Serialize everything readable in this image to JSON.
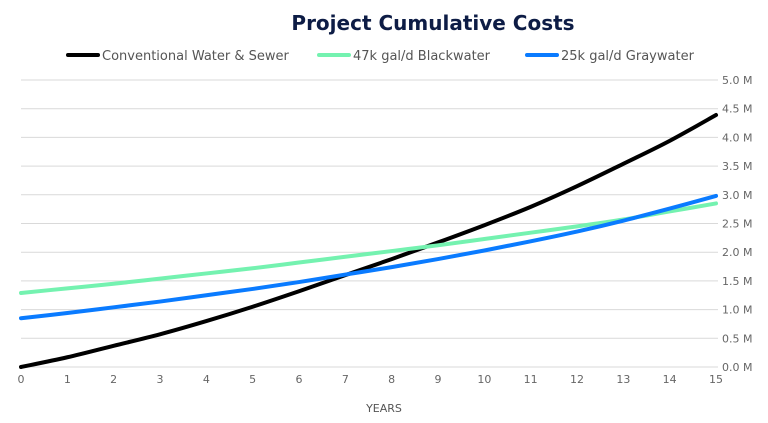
{
  "chart_data": {
    "type": "line",
    "title": "Project Cumulative Costs",
    "xlabel": "YEARS",
    "ylabel": "",
    "x": [
      0,
      1,
      2,
      3,
      4,
      5,
      6,
      7,
      8,
      9,
      10,
      11,
      12,
      13,
      14,
      15
    ],
    "xlim": [
      0,
      15
    ],
    "ylim": [
      0,
      5.0
    ],
    "y_ticks": [
      "0.0 M",
      "0.5 M",
      "1.0 M",
      "1.5 M",
      "2.0 M",
      "2.5 M",
      "3.0 M",
      "3.5 M",
      "4.0 M",
      "4.5 M",
      "5.0 M"
    ],
    "x_ticks": [
      "0",
      "1",
      "2",
      "3",
      "4",
      "5",
      "6",
      "7",
      "8",
      "9",
      "10",
      "11",
      "12",
      "13",
      "14",
      "15"
    ],
    "y_unit": "M",
    "y_axis_side": "right",
    "grid": true,
    "legend_position": "top",
    "series": [
      {
        "name": "Conventional Water & Sewer",
        "color": "#000000",
        "values": [
          0,
          0.17,
          0.37,
          0.57,
          0.8,
          1.05,
          1.32,
          1.6,
          1.88,
          2.17,
          2.47,
          2.79,
          3.15,
          3.54,
          3.94,
          4.39
        ]
      },
      {
        "name": "47k gal/d Blackwater",
        "color": "#74f2b0",
        "values": [
          1.29,
          1.37,
          1.45,
          1.54,
          1.63,
          1.72,
          1.82,
          1.92,
          2.02,
          2.12,
          2.23,
          2.34,
          2.45,
          2.57,
          2.71,
          2.85
        ]
      },
      {
        "name": "25k gal/d Graywater",
        "color": "#0a7bff",
        "values": [
          0.85,
          0.94,
          1.04,
          1.14,
          1.25,
          1.36,
          1.48,
          1.61,
          1.74,
          1.88,
          2.03,
          2.19,
          2.36,
          2.55,
          2.76,
          2.98
        ]
      }
    ]
  }
}
